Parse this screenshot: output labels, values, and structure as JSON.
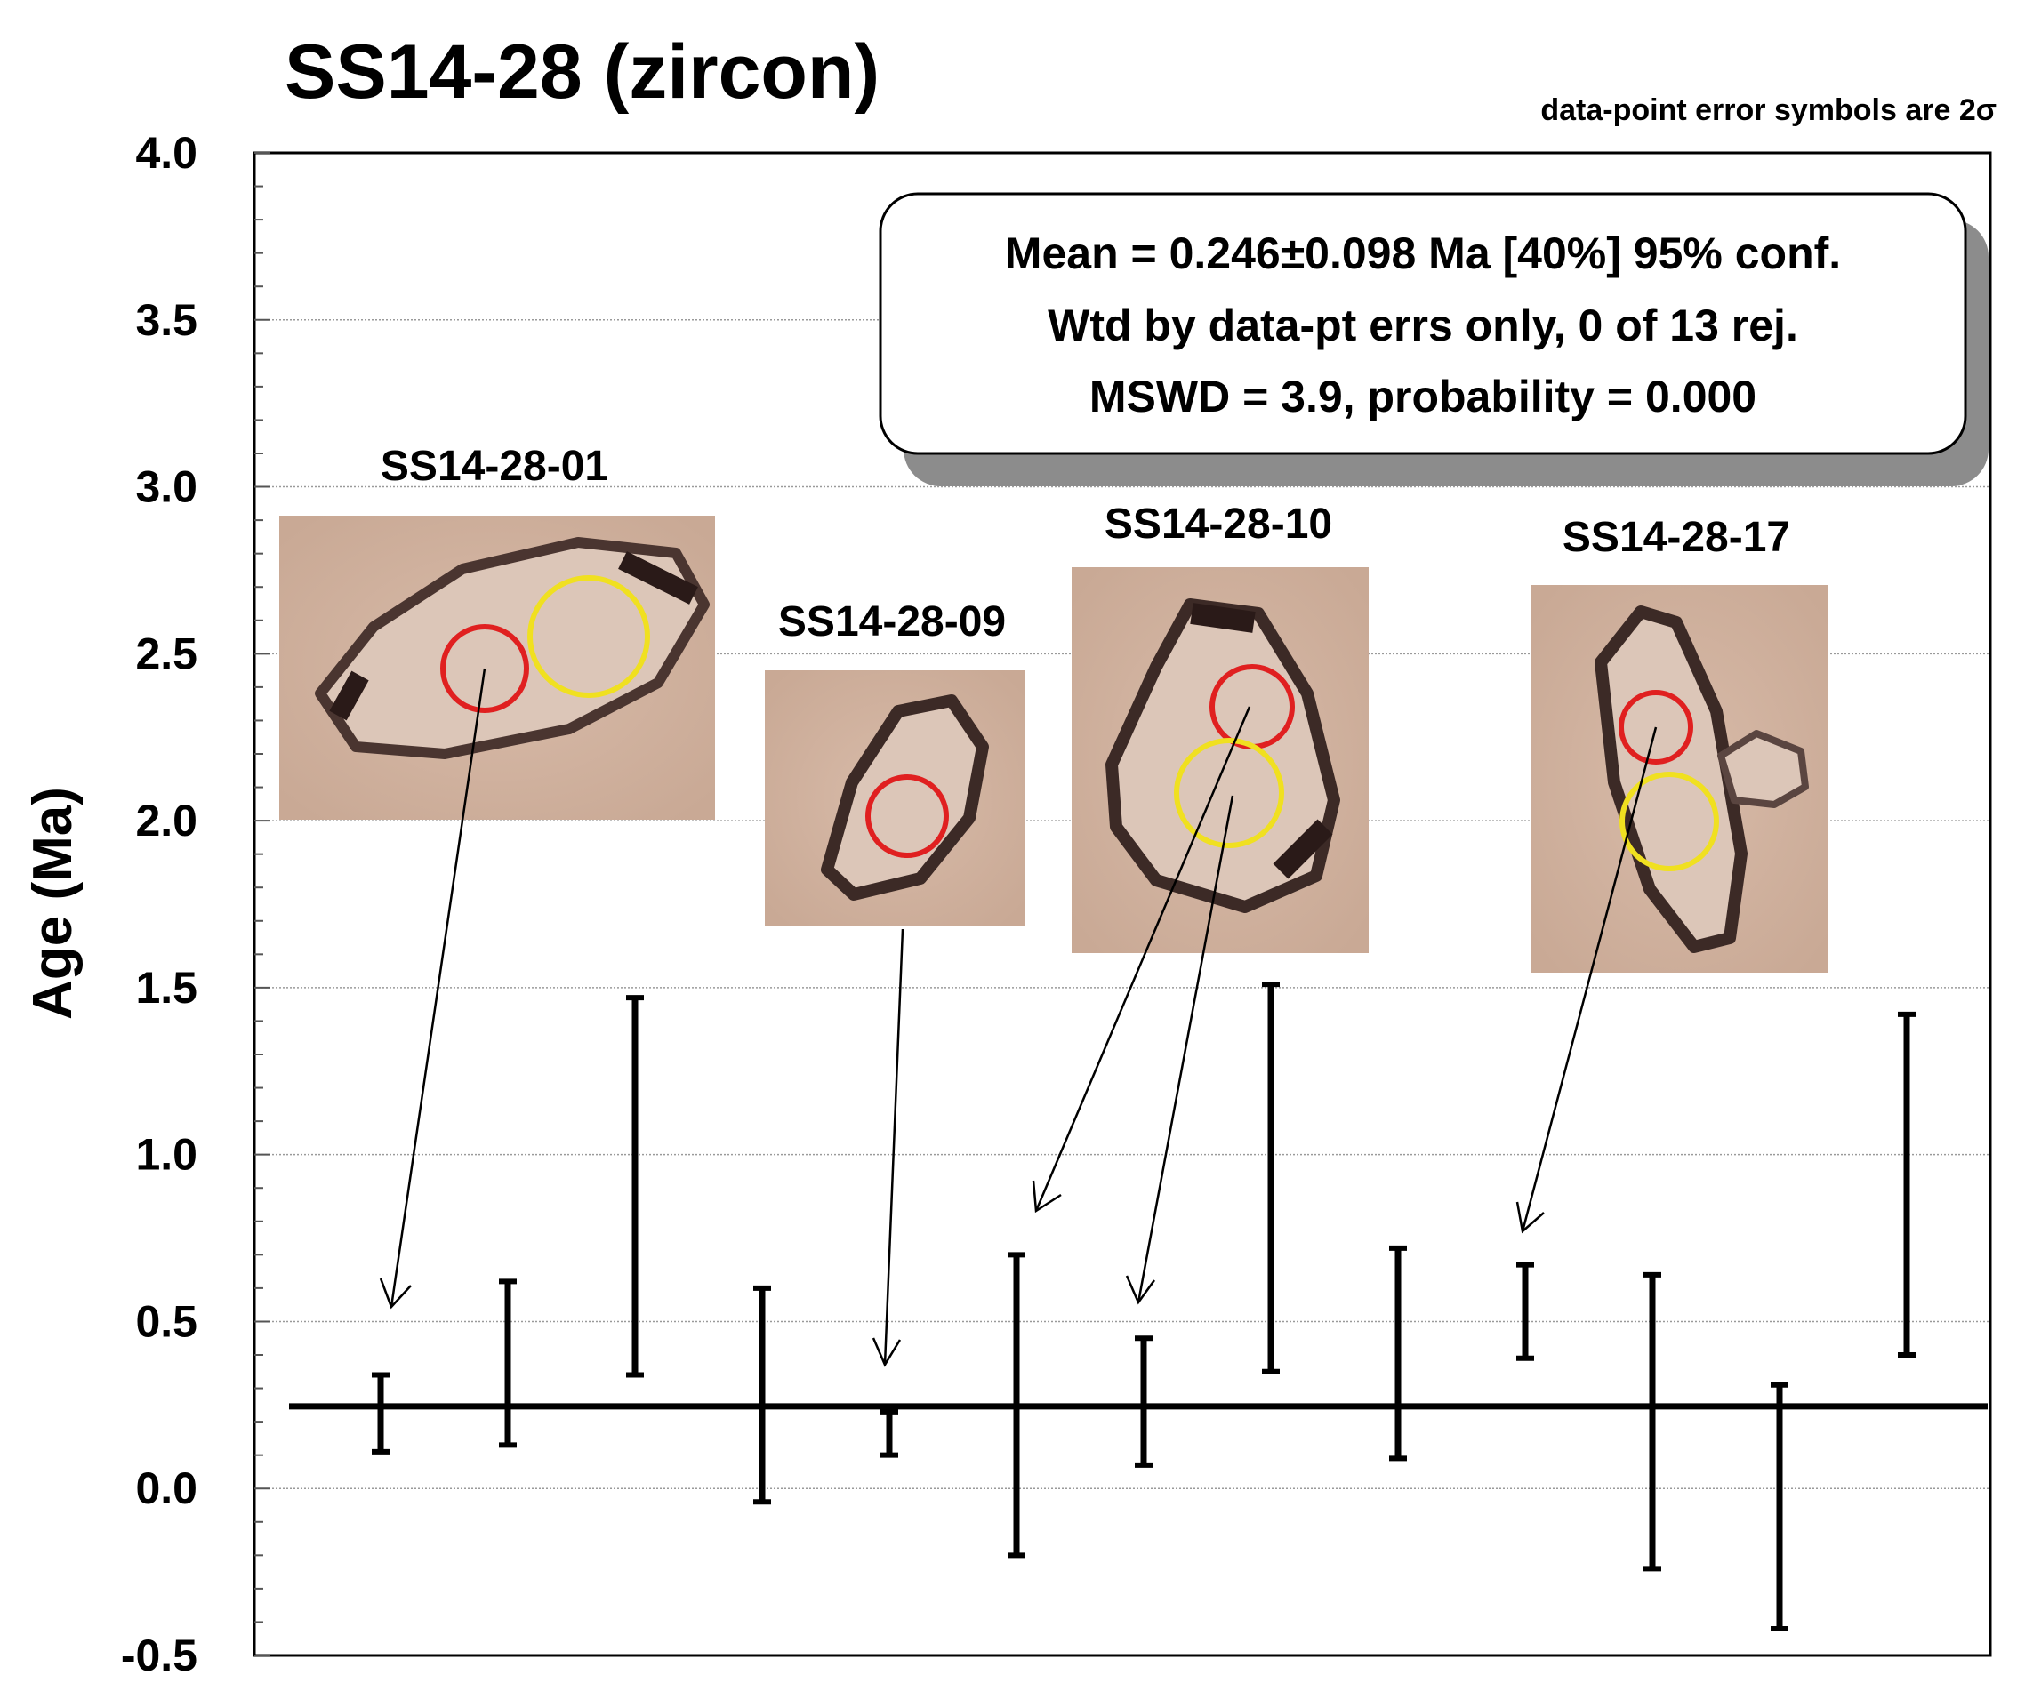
{
  "title": "SS14-28 (zircon)",
  "note": "data-point error symbols are 2σ",
  "stats_box": {
    "line1": "Mean = 0.246±0.098 Ma [40%]  95% conf.",
    "line2": "Wtd by data-pt errs only, 0 of 13 rej.",
    "line3": "MSWD = 3.9, probability = 0.000"
  },
  "grain_labels": {
    "g01": "SS14-28-01",
    "g09": "SS14-28-09",
    "g10": "SS14-28-10",
    "g17": "SS14-28-17"
  },
  "colors": {
    "photo_bg": "#d2b4a2",
    "spot_red": "#e02020",
    "spot_yellow": "#f0e020",
    "gridline": "#9a9a9a"
  },
  "chart_data": {
    "type": "scatter",
    "xlabel": "",
    "ylabel": "Age (Ma)",
    "ylim": [
      -0.5,
      4.0
    ],
    "yticks": [
      "4.0",
      "3.5",
      "3.0",
      "2.5",
      "2.0",
      "1.5",
      "1.0",
      "0.5",
      "0.0",
      "-0.5"
    ],
    "grid": true,
    "weighted_mean": 0.246,
    "error_bars_2sigma": [
      {
        "index": 1,
        "low": 0.11,
        "high": 0.34
      },
      {
        "index": 2,
        "low": 0.13,
        "high": 0.62
      },
      {
        "index": 3,
        "low": 0.34,
        "high": 1.47
      },
      {
        "index": 4,
        "low": -0.04,
        "high": 0.6
      },
      {
        "index": 5,
        "low": 0.1,
        "high": 0.23
      },
      {
        "index": 6,
        "low": -0.2,
        "high": 0.7
      },
      {
        "index": 7,
        "low": 0.07,
        "high": 0.45
      },
      {
        "index": 8,
        "low": 0.35,
        "high": 1.51
      },
      {
        "index": 9,
        "low": 0.09,
        "high": 0.72
      },
      {
        "index": 10,
        "low": 0.39,
        "high": 0.67
      },
      {
        "index": 11,
        "low": -0.24,
        "high": 0.64
      },
      {
        "index": 12,
        "low": -0.42,
        "high": 0.31
      },
      {
        "index": 13,
        "low": 0.4,
        "high": 1.42
      }
    ]
  }
}
